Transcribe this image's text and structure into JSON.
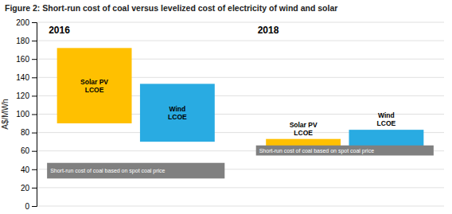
{
  "chart_data": {
    "type": "bar",
    "title": "Figure 2: Short-run cost of coal versus levelized cost of electricity of wind and solar",
    "ylabel": "A$/MWh",
    "categories": [
      "2016",
      "2018"
    ],
    "series": [
      {
        "name": "Solar PV\nLCOE",
        "type": "bar",
        "color": "#FFC000",
        "bottoms": [
          90,
          60
        ],
        "values": [
          172,
          73
        ]
      },
      {
        "name": "Wind\nLCOE",
        "type": "bar",
        "color": "#29ABE2",
        "bottoms": [
          70,
          60
        ],
        "values": [
          133,
          83
        ]
      },
      {
        "name": "Short-run cost of coal based on spot coal price",
        "type": "span",
        "color": "#808080",
        "bottoms": [
          30,
          55
        ],
        "values": [
          47,
          66
        ]
      }
    ],
    "ylim": [
      0,
      200
    ],
    "yticks": [
      0,
      20,
      40,
      60,
      80,
      100,
      120,
      140,
      160,
      180,
      200
    ],
    "grid": true,
    "tick_labels": "y"
  }
}
